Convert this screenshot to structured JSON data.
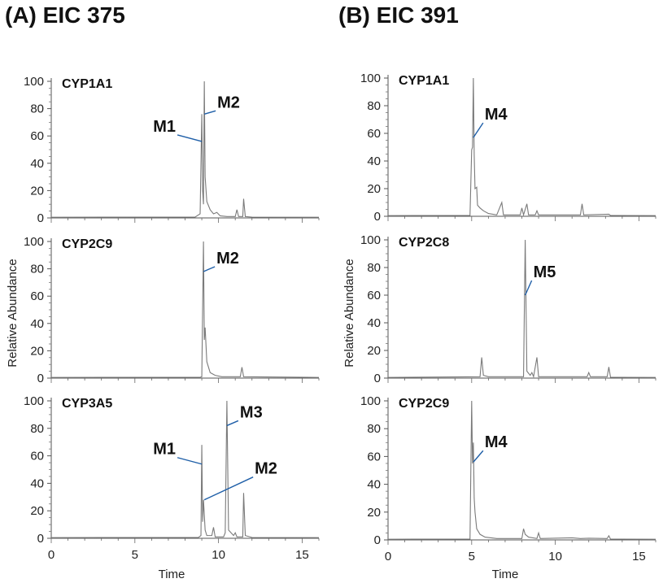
{
  "chart_data": [
    {
      "type": "line",
      "title": "(A) EIC 375",
      "xlabel": "Time",
      "ylabel": "Relative Abundance",
      "xlim": [
        0,
        16
      ],
      "ylim": [
        0,
        100
      ],
      "xticks": [
        0,
        5,
        10,
        15
      ],
      "yticks": [
        0,
        20,
        40,
        60,
        80,
        100
      ],
      "subplots": [
        {
          "enzyme": "CYP1A1",
          "trace": [
            [
              0,
              0.5
            ],
            [
              8.6,
              0.6
            ],
            [
              8.9,
              3
            ],
            [
              9.0,
              76
            ],
            [
              9.05,
              20
            ],
            [
              9.1,
              10
            ],
            [
              9.15,
              100
            ],
            [
              9.2,
              30
            ],
            [
              9.3,
              12
            ],
            [
              9.5,
              6
            ],
            [
              9.7,
              3
            ],
            [
              9.9,
              4
            ],
            [
              10.1,
              1.5
            ],
            [
              10.5,
              1
            ],
            [
              11.0,
              1
            ],
            [
              11.1,
              6
            ],
            [
              11.2,
              1
            ],
            [
              11.45,
              1
            ],
            [
              11.5,
              14
            ],
            [
              11.6,
              1
            ],
            [
              12.0,
              0.6
            ],
            [
              16,
              0.5
            ]
          ],
          "annotations": [
            {
              "text": "M1",
              "x": 9.0,
              "y": 56
            },
            {
              "text": "M2",
              "x": 9.15,
              "y": 76
            }
          ]
        },
        {
          "enzyme": "CYP2C9",
          "trace": [
            [
              0,
              0.5
            ],
            [
              8.9,
              0.6
            ],
            [
              9.0,
              1
            ],
            [
              9.1,
              100
            ],
            [
              9.15,
              28
            ],
            [
              9.2,
              37
            ],
            [
              9.3,
              12
            ],
            [
              9.5,
              4
            ],
            [
              9.8,
              2
            ],
            [
              10.2,
              1
            ],
            [
              11.3,
              1
            ],
            [
              11.4,
              8
            ],
            [
              11.5,
              1
            ],
            [
              16,
              0.5
            ]
          ],
          "annotations": [
            {
              "text": "M2",
              "x": 9.1,
              "y": 78
            }
          ]
        },
        {
          "enzyme": "CYP3A5",
          "trace": [
            [
              0,
              0.5
            ],
            [
              8.8,
              0.6
            ],
            [
              8.95,
              2
            ],
            [
              9.0,
              68
            ],
            [
              9.05,
              12
            ],
            [
              9.1,
              28
            ],
            [
              9.2,
              6
            ],
            [
              9.3,
              2
            ],
            [
              9.6,
              2
            ],
            [
              9.7,
              8
            ],
            [
              9.8,
              1
            ],
            [
              10.3,
              1
            ],
            [
              10.4,
              4
            ],
            [
              10.5,
              100
            ],
            [
              10.6,
              6
            ],
            [
              10.9,
              2
            ],
            [
              11.0,
              4
            ],
            [
              11.1,
              1
            ],
            [
              11.45,
              1
            ],
            [
              11.5,
              33
            ],
            [
              11.6,
              2
            ],
            [
              12.0,
              0.6
            ],
            [
              16,
              0.5
            ]
          ],
          "annotations": [
            {
              "text": "M1",
              "x": 9.0,
              "y": 54
            },
            {
              "text": "M2",
              "x": 9.15,
              "y": 28
            },
            {
              "text": "M3",
              "x": 10.5,
              "y": 82
            }
          ]
        }
      ]
    },
    {
      "type": "line",
      "title": "(B) EIC 391",
      "xlabel": "Time",
      "ylabel": "Relative Abundance",
      "xlim": [
        0,
        16
      ],
      "ylim": [
        0,
        100
      ],
      "xticks": [
        0,
        5,
        10,
        15
      ],
      "yticks": [
        0,
        20,
        40,
        60,
        80,
        100
      ],
      "subplots": [
        {
          "enzyme": "CYP1A1",
          "trace": [
            [
              0,
              0.5
            ],
            [
              4.9,
              0.6
            ],
            [
              5.0,
              48
            ],
            [
              5.05,
              50
            ],
            [
              5.1,
              100
            ],
            [
              5.15,
              45
            ],
            [
              5.2,
              20
            ],
            [
              5.3,
              21
            ],
            [
              5.35,
              8
            ],
            [
              5.5,
              6
            ],
            [
              5.7,
              4
            ],
            [
              6.0,
              2
            ],
            [
              6.5,
              1
            ],
            [
              6.8,
              10
            ],
            [
              6.9,
              1
            ],
            [
              7.9,
              1
            ],
            [
              8.0,
              6
            ],
            [
              8.1,
              1
            ],
            [
              8.3,
              9
            ],
            [
              8.4,
              1
            ],
            [
              8.8,
              1
            ],
            [
              8.9,
              4
            ],
            [
              9.0,
              1
            ],
            [
              11.5,
              1
            ],
            [
              11.6,
              9
            ],
            [
              11.7,
              1
            ],
            [
              13.2,
              1.5
            ],
            [
              13.3,
              0.6
            ],
            [
              16,
              0.5
            ]
          ],
          "annotations": [
            {
              "text": "M4",
              "x": 5.1,
              "y": 57
            }
          ]
        },
        {
          "enzyme": "CYP2C8",
          "trace": [
            [
              0,
              0.5
            ],
            [
              5.5,
              1
            ],
            [
              5.6,
              15
            ],
            [
              5.7,
              2
            ],
            [
              6.0,
              1
            ],
            [
              8.1,
              1
            ],
            [
              8.2,
              100
            ],
            [
              8.3,
              5
            ],
            [
              8.5,
              2
            ],
            [
              8.6,
              4
            ],
            [
              8.7,
              1
            ],
            [
              8.9,
              15
            ],
            [
              9.0,
              1
            ],
            [
              11.9,
              1
            ],
            [
              12.0,
              4
            ],
            [
              12.1,
              1
            ],
            [
              13.1,
              1
            ],
            [
              13.2,
              8
            ],
            [
              13.3,
              0.6
            ],
            [
              16,
              0.5
            ]
          ],
          "annotations": [
            {
              "text": "M5",
              "x": 8.2,
              "y": 60
            }
          ]
        },
        {
          "enzyme": "CYP2C9",
          "trace": [
            [
              0,
              0.5
            ],
            [
              4.9,
              0.6
            ],
            [
              5.0,
              100
            ],
            [
              5.05,
              55
            ],
            [
              5.1,
              70
            ],
            [
              5.15,
              30
            ],
            [
              5.2,
              20
            ],
            [
              5.3,
              8
            ],
            [
              5.5,
              4
            ],
            [
              5.8,
              2
            ],
            [
              6.5,
              1
            ],
            [
              8.0,
              1
            ],
            [
              8.1,
              8
            ],
            [
              8.2,
              4
            ],
            [
              8.4,
              2
            ],
            [
              8.9,
              1
            ],
            [
              9.0,
              5
            ],
            [
              9.1,
              1
            ],
            [
              11.0,
              1.5
            ],
            [
              11.5,
              1
            ],
            [
              12.0,
              1.2
            ],
            [
              13.1,
              1
            ],
            [
              13.2,
              3
            ],
            [
              13.3,
              0.6
            ],
            [
              16,
              0.5
            ]
          ],
          "annotations": [
            {
              "text": "M4",
              "x": 5.1,
              "y": 56
            }
          ]
        }
      ]
    }
  ]
}
